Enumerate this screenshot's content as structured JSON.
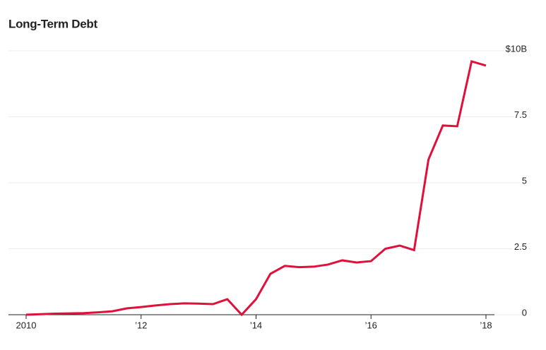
{
  "chart_data": {
    "type": "line",
    "title": "Long-Term Debt",
    "x": [
      2010,
      2010.25,
      2010.5,
      2010.75,
      2011,
      2011.25,
      2011.5,
      2011.75,
      2012,
      2012.25,
      2012.5,
      2012.75,
      2013,
      2013.25,
      2013.5,
      2013.75,
      2014,
      2014.25,
      2014.5,
      2014.75,
      2015,
      2015.25,
      2015.5,
      2015.75,
      2016,
      2016.25,
      2016.5,
      2016.75,
      2017,
      2017.25,
      2017.5,
      2017.75,
      2018
    ],
    "series": [
      {
        "name": "Long-Term Debt",
        "color": "#e0103a",
        "values": [
          0,
          0.02,
          0.04,
          0.05,
          0.06,
          0.09,
          0.13,
          0.24,
          0.29,
          0.35,
          0.4,
          0.43,
          0.42,
          0.4,
          0.59,
          0,
          0.59,
          1.55,
          1.85,
          1.8,
          1.82,
          1.9,
          2.06,
          1.98,
          2.03,
          2.5,
          2.62,
          2.45,
          5.88,
          7.17,
          7.14,
          9.6,
          9.44
        ]
      }
    ],
    "xlim": [
      2010,
      2018
    ],
    "xticks": [
      2010,
      {
        "value": 2012,
        "label": "’12"
      },
      {
        "value": 2014,
        "label": "’14"
      },
      {
        "value": 2016,
        "label": "’16"
      },
      {
        "value": 2018,
        "label": "’18"
      }
    ],
    "ylim": [
      0,
      10
    ],
    "yticks": [
      0,
      2.5,
      5,
      7.5,
      {
        "value": 10,
        "label": "$10B"
      }
    ],
    "grid": true
  }
}
